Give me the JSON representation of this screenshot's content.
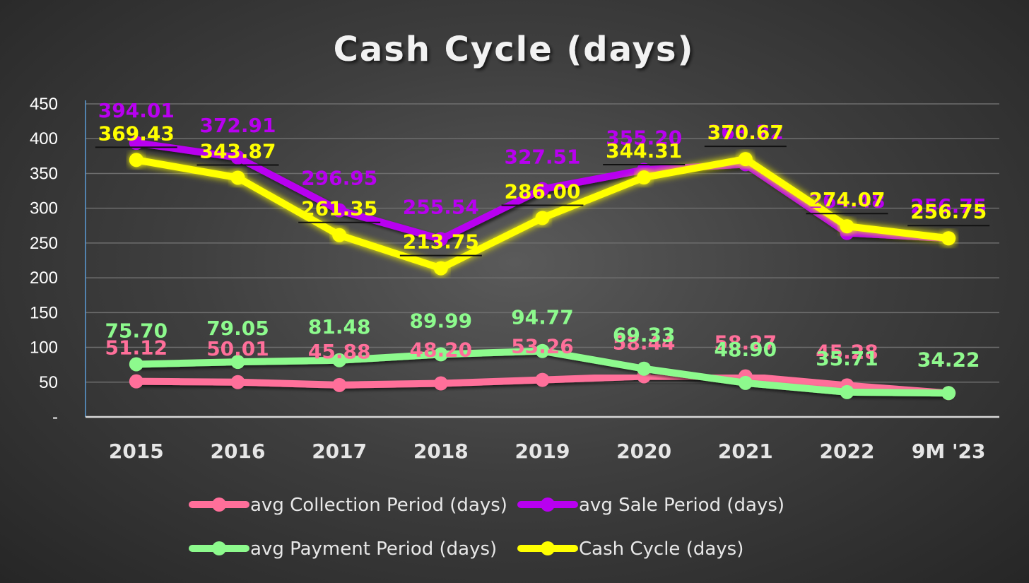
{
  "chart_data": {
    "type": "line",
    "title": "Cash Cycle (days)",
    "categories": [
      "2015",
      "2016",
      "2017",
      "2018",
      "2019",
      "2020",
      "2021",
      "2022",
      "9M '23"
    ],
    "ylim": [
      0,
      450
    ],
    "yticks": [
      "-",
      "50",
      "100",
      "150",
      "200",
      "250",
      "300",
      "350",
      "400",
      "450"
    ],
    "grid": true,
    "legend_position": "bottom",
    "series": [
      {
        "name": "avg Collection Period (days)",
        "color": "#ff6f9a",
        "values": [
          51.12,
          50.01,
          45.88,
          48.2,
          53.26,
          58.44,
          58.27,
          45.28,
          34.22
        ],
        "labels": [
          "51.12",
          "50.01",
          "45.88",
          "48.20",
          "53.26",
          "58.44",
          "58.27",
          "45.28",
          "34.22"
        ]
      },
      {
        "name": "avg Sale Period (days)",
        "color": "#b800f0",
        "values": [
          394.01,
          372.91,
          296.95,
          255.54,
          327.51,
          355.2,
          363.22,
          264.48,
          256.75
        ],
        "labels": [
          "394.01",
          "372.91",
          "296.95",
          "255.54",
          "327.51",
          "355.20",
          "363.22",
          "264.48",
          "256.75"
        ]
      },
      {
        "name": "avg Payment Period (days)",
        "color": "#8dfa8d",
        "values": [
          75.7,
          79.05,
          81.48,
          89.99,
          94.77,
          69.33,
          48.9,
          35.71,
          34.22
        ],
        "labels": [
          "75.70",
          "79.05",
          "81.48",
          "89.99",
          "94.77",
          "69.33",
          "48.90",
          "35.71",
          "34.22"
        ]
      },
      {
        "name": "Cash Cycle (days)",
        "color": "#ffff00",
        "values": [
          369.43,
          343.87,
          261.35,
          213.75,
          286.0,
          344.31,
          370.67,
          274.07,
          256.75
        ],
        "labels": [
          "369.43",
          "343.87",
          "261.35",
          "213.75",
          "286.00",
          "344.31",
          "370.67",
          "274.07",
          "256.75"
        ]
      }
    ]
  }
}
